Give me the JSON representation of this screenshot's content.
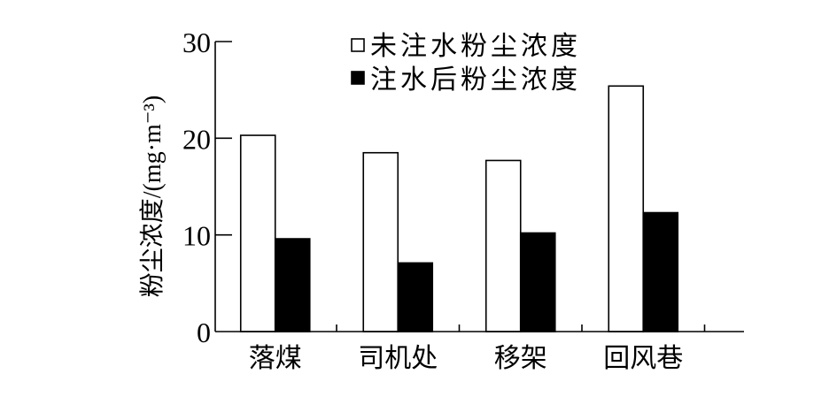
{
  "chart_data": {
    "type": "bar",
    "title": "",
    "xlabel": "",
    "ylabel": "粉尘浓度/(mg·m⁻³)",
    "categories": [
      "落煤",
      "司机处",
      "移架",
      "回风巷"
    ],
    "series": [
      {
        "name": "未注水粉尘浓度",
        "values": [
          20.3,
          18.5,
          17.7,
          25.4
        ],
        "color": "#ffffff"
      },
      {
        "name": "注水后粉尘浓度",
        "values": [
          9.6,
          7.1,
          10.2,
          12.3
        ],
        "color": "#000000"
      }
    ],
    "ylim": [
      0,
      30
    ],
    "yticks": [
      0,
      10,
      20,
      30
    ],
    "grid": false,
    "legend": "top-center",
    "stroke_color": "#000000"
  }
}
